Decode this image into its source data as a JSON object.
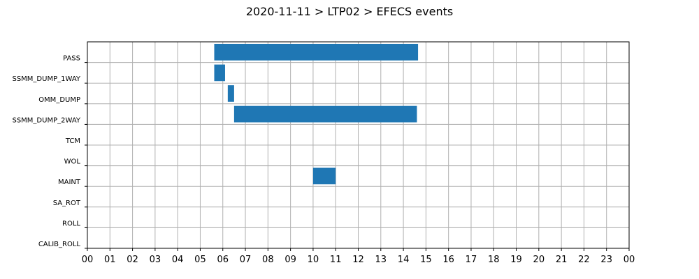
{
  "chart_data": {
    "type": "bar",
    "orientation": "horizontal",
    "title": "2020-11-11 > LTP02 > EFECS events",
    "xlabel": "",
    "ylabel": "",
    "xlim": [
      0,
      24
    ],
    "x_unit": "hour",
    "x_tick_labels": [
      "00",
      "01",
      "02",
      "03",
      "04",
      "05",
      "06",
      "07",
      "08",
      "09",
      "10",
      "11",
      "12",
      "13",
      "14",
      "15",
      "16",
      "17",
      "18",
      "19",
      "20",
      "21",
      "22",
      "23",
      "00"
    ],
    "categories": [
      "PASS",
      "SSMM_DUMP_1WAY",
      "OMM_DUMP",
      "SSMM_DUMP_2WAY",
      "TCM",
      "WOL",
      "MAINT",
      "SA_ROT",
      "ROLL",
      "CALIB_ROLL"
    ],
    "grid": true,
    "bar_color": "#1f77b4",
    "intervals": [
      {
        "category": "PASS",
        "start": 5.62,
        "end": 14.65
      },
      {
        "category": "SSMM_DUMP_1WAY",
        "start": 5.62,
        "end": 6.1
      },
      {
        "category": "OMM_DUMP",
        "start": 6.22,
        "end": 6.5
      },
      {
        "category": "SSMM_DUMP_2WAY",
        "start": 6.5,
        "end": 14.6
      },
      {
        "category": "MAINT",
        "start": 10.0,
        "end": 11.0
      }
    ]
  }
}
